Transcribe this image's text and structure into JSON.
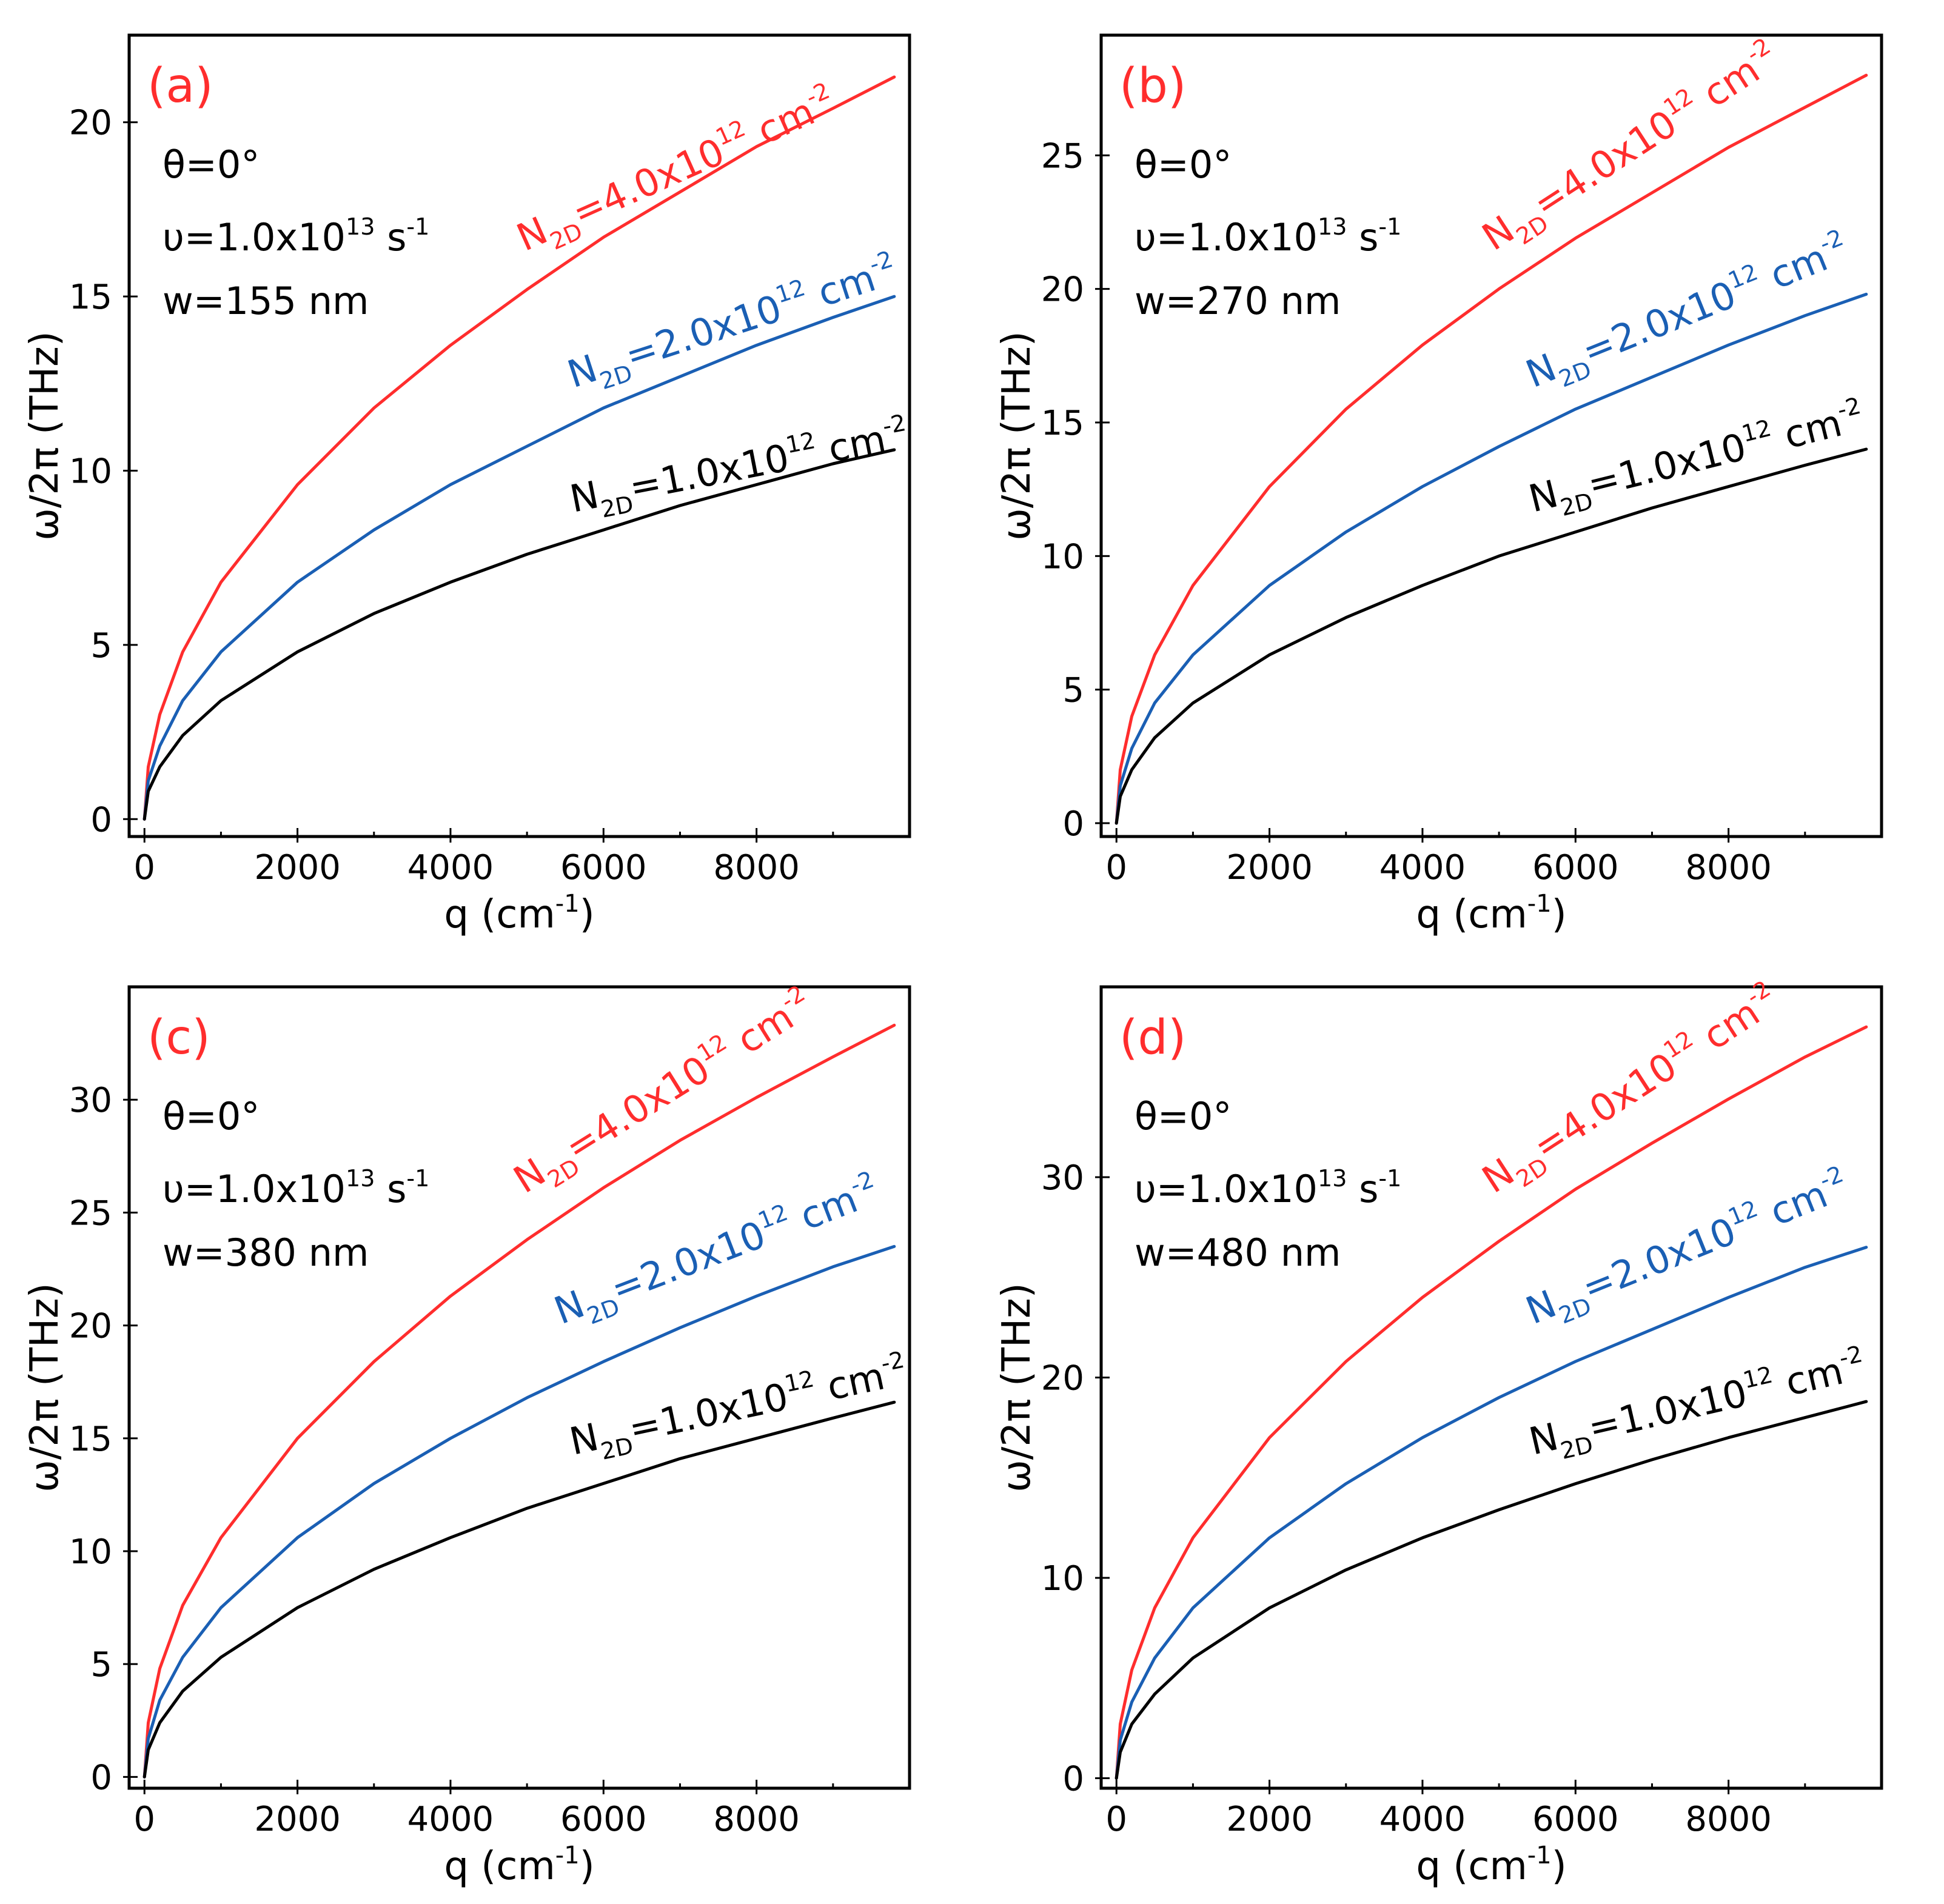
{
  "chart_data": [
    {
      "type": "line",
      "panel_label": "(a)",
      "xlabel": "q (cm-1)",
      "ylabel": "ω/2π (THz)",
      "xlim": [
        -200,
        10000
      ],
      "ylim": [
        -0.5,
        22.5
      ],
      "xticks": [
        0,
        2000,
        4000,
        6000,
        8000
      ],
      "yticks": [
        0,
        5,
        10,
        15,
        20
      ],
      "params": {
        "theta": "θ=0°",
        "nu": "υ=1.0x1013 s-1",
        "w": "w=155 nm"
      },
      "series": [
        {
          "name": "N2D=4.0x1012 cm-2",
          "color": "#ff2d2d",
          "q": [
            0,
            50,
            200,
            500,
            1000,
            2000,
            3000,
            4000,
            5000,
            6000,
            7000,
            8000,
            9000,
            9800
          ],
          "omega": [
            0,
            1.5,
            3.0,
            4.8,
            6.8,
            9.6,
            11.8,
            13.6,
            15.2,
            16.7,
            18.0,
            19.3,
            20.4,
            21.3
          ]
        },
        {
          "name": "N2D=2.0x1012 cm-2",
          "color": "#1a5fb4",
          "q": [
            0,
            50,
            200,
            500,
            1000,
            2000,
            3000,
            4000,
            5000,
            6000,
            7000,
            8000,
            9000,
            9800
          ],
          "omega": [
            0,
            1.1,
            2.1,
            3.4,
            4.8,
            6.8,
            8.3,
            9.6,
            10.7,
            11.8,
            12.7,
            13.6,
            14.4,
            15.0
          ]
        },
        {
          "name": "N2D=1.0x1012 cm-2",
          "color": "#000000",
          "q": [
            0,
            50,
            200,
            500,
            1000,
            2000,
            3000,
            4000,
            5000,
            6000,
            7000,
            8000,
            9000,
            9800
          ],
          "omega": [
            0,
            0.8,
            1.5,
            2.4,
            3.4,
            4.8,
            5.9,
            6.8,
            7.6,
            8.3,
            9.0,
            9.6,
            10.2,
            10.6
          ]
        }
      ],
      "labels": [
        {
          "base": "N",
          "sub": "2D",
          "rest": "=4.0x10",
          "sup": "12",
          "unit": " cm",
          "usup": "-2",
          "color": "#ff2d2d"
        },
        {
          "base": "N",
          "sub": "2D",
          "rest": "=2.0x10",
          "sup": "12",
          "unit": " cm",
          "usup": "-2",
          "color": "#1a5fb4"
        },
        {
          "base": "N",
          "sub": "2D",
          "rest": "=1.0x10",
          "sup": "12",
          "unit": " cm",
          "usup": "-2",
          "color": "#000000"
        }
      ]
    },
    {
      "type": "line",
      "panel_label": "(b)",
      "xlabel": "q (cm-1)",
      "ylabel": "ω/2π (THz)",
      "xlim": [
        -200,
        10000
      ],
      "ylim": [
        -0.5,
        29.5
      ],
      "xticks": [
        0,
        2000,
        4000,
        6000,
        8000
      ],
      "yticks": [
        0,
        5,
        10,
        15,
        20,
        25
      ],
      "params": {
        "theta": "θ=0°",
        "nu": "υ=1.0x1013 s-1",
        "w": "w=270 nm"
      },
      "series": [
        {
          "name": "N2D=4.0x1012 cm-2",
          "color": "#ff2d2d",
          "q": [
            0,
            50,
            200,
            500,
            1000,
            2000,
            3000,
            4000,
            5000,
            6000,
            7000,
            8000,
            9000,
            9800
          ],
          "omega": [
            0,
            2.0,
            4.0,
            6.3,
            8.9,
            12.6,
            15.5,
            17.9,
            20.0,
            21.9,
            23.6,
            25.3,
            26.8,
            28.0
          ]
        },
        {
          "name": "N2D=2.0x1012 cm-2",
          "color": "#1a5fb4",
          "q": [
            0,
            50,
            200,
            500,
            1000,
            2000,
            3000,
            4000,
            5000,
            6000,
            7000,
            8000,
            9000,
            9800
          ],
          "omega": [
            0,
            1.4,
            2.8,
            4.5,
            6.3,
            8.9,
            10.9,
            12.6,
            14.1,
            15.5,
            16.7,
            17.9,
            19.0,
            19.8
          ]
        },
        {
          "name": "N2D=1.0x1012 cm-2",
          "color": "#000000",
          "q": [
            0,
            50,
            200,
            500,
            1000,
            2000,
            3000,
            4000,
            5000,
            6000,
            7000,
            8000,
            9000,
            9800
          ],
          "omega": [
            0,
            1.0,
            2.0,
            3.2,
            4.5,
            6.3,
            7.7,
            8.9,
            10.0,
            10.9,
            11.8,
            12.6,
            13.4,
            14.0
          ]
        }
      ],
      "labels": [
        {
          "base": "N",
          "sub": "2D",
          "rest": "=4.0x10",
          "sup": "12",
          "unit": " cm",
          "usup": "-2",
          "color": "#ff2d2d"
        },
        {
          "base": "N",
          "sub": "2D",
          "rest": "=2.0x10",
          "sup": "12",
          "unit": " cm",
          "usup": "-2",
          "color": "#1a5fb4"
        },
        {
          "base": "N",
          "sub": "2D",
          "rest": "=1.0x10",
          "sup": "12",
          "unit": " cm",
          "usup": "-2",
          "color": "#000000"
        }
      ]
    },
    {
      "type": "line",
      "panel_label": "(c)",
      "xlabel": "q (cm-1)",
      "ylabel": "ω/2π (THz)",
      "xlim": [
        -200,
        10000
      ],
      "ylim": [
        -0.5,
        35.0
      ],
      "xticks": [
        0,
        2000,
        4000,
        6000,
        8000
      ],
      "yticks": [
        0,
        5,
        10,
        15,
        20,
        25,
        30
      ],
      "params": {
        "theta": "θ=0°",
        "nu": "υ=1.0x1013 s-1",
        "w": "w=380 nm"
      },
      "series": [
        {
          "name": "N2D=4.0x1012 cm-2",
          "color": "#ff2d2d",
          "q": [
            0,
            50,
            200,
            500,
            1000,
            2000,
            3000,
            4000,
            5000,
            6000,
            7000,
            8000,
            9000,
            9800
          ],
          "omega": [
            0,
            2.4,
            4.8,
            7.6,
            10.6,
            15.0,
            18.4,
            21.3,
            23.8,
            26.1,
            28.2,
            30.1,
            31.9,
            33.3
          ]
        },
        {
          "name": "N2D=2.0x1012 cm-2",
          "color": "#1a5fb4",
          "q": [
            0,
            50,
            200,
            500,
            1000,
            2000,
            3000,
            4000,
            5000,
            6000,
            7000,
            8000,
            9000,
            9800
          ],
          "omega": [
            0,
            1.7,
            3.4,
            5.3,
            7.5,
            10.6,
            13.0,
            15.0,
            16.8,
            18.4,
            19.9,
            21.3,
            22.6,
            23.5
          ]
        },
        {
          "name": "N2D=1.0x1012 cm-2",
          "color": "#000000",
          "q": [
            0,
            50,
            200,
            500,
            1000,
            2000,
            3000,
            4000,
            5000,
            6000,
            7000,
            8000,
            9000,
            9800
          ],
          "omega": [
            0,
            1.2,
            2.4,
            3.8,
            5.3,
            7.5,
            9.2,
            10.6,
            11.9,
            13.0,
            14.1,
            15.0,
            15.9,
            16.6
          ]
        }
      ],
      "labels": [
        {
          "base": "N",
          "sub": "2D",
          "rest": "=4.0x10",
          "sup": "12",
          "unit": " cm",
          "usup": "-2",
          "color": "#ff2d2d"
        },
        {
          "base": "N",
          "sub": "2D",
          "rest": "=2.0x10",
          "sup": "12",
          "unit": " cm",
          "usup": "-2",
          "color": "#1a5fb4"
        },
        {
          "base": "N",
          "sub": "2D",
          "rest": "=1.0x10",
          "sup": "12",
          "unit": " cm",
          "usup": "-2",
          "color": "#000000"
        }
      ]
    },
    {
      "type": "line",
      "panel_label": "(d)",
      "xlabel": "q (cm-1)",
      "ylabel": "ω/2π (THz)",
      "xlim": [
        -200,
        10000
      ],
      "ylim": [
        -0.5,
        39.5
      ],
      "xticks": [
        0,
        2000,
        4000,
        6000,
        8000
      ],
      "yticks": [
        0,
        10,
        20,
        30
      ],
      "params": {
        "theta": "θ=0°",
        "nu": "υ=1.0x1013 s-1",
        "w": "w=480 nm"
      },
      "series": [
        {
          "name": "N2D=4.0x1012 cm-2",
          "color": "#ff2d2d",
          "q": [
            0,
            50,
            200,
            500,
            1000,
            2000,
            3000,
            4000,
            5000,
            6000,
            7000,
            8000,
            9000,
            9800
          ],
          "omega": [
            0,
            2.7,
            5.4,
            8.5,
            12.0,
            17.0,
            20.8,
            24.0,
            26.8,
            29.4,
            31.7,
            33.9,
            36.0,
            37.5
          ]
        },
        {
          "name": "N2D=2.0x1012 cm-2",
          "color": "#1a5fb4",
          "q": [
            0,
            50,
            200,
            500,
            1000,
            2000,
            3000,
            4000,
            5000,
            6000,
            7000,
            8000,
            9000,
            9800
          ],
          "omega": [
            0,
            1.9,
            3.8,
            6.0,
            8.5,
            12.0,
            14.7,
            17.0,
            19.0,
            20.8,
            22.4,
            24.0,
            25.5,
            26.5
          ]
        },
        {
          "name": "N2D=1.0x1012 cm-2",
          "color": "#000000",
          "q": [
            0,
            50,
            200,
            500,
            1000,
            2000,
            3000,
            4000,
            5000,
            6000,
            7000,
            8000,
            9000,
            9800
          ],
          "omega": [
            0,
            1.3,
            2.7,
            4.2,
            6.0,
            8.5,
            10.4,
            12.0,
            13.4,
            14.7,
            15.9,
            17.0,
            18.0,
            18.8
          ]
        }
      ],
      "labels": [
        {
          "base": "N",
          "sub": "2D",
          "rest": "=4.0x10",
          "sup": "12",
          "unit": " cm",
          "usup": "-2",
          "color": "#ff2d2d"
        },
        {
          "base": "N",
          "sub": "2D",
          "rest": "=2.0x10",
          "sup": "12",
          "unit": " cm",
          "usup": "-2",
          "color": "#1a5fb4"
        },
        {
          "base": "N",
          "sub": "2D",
          "rest": "=1.0x10",
          "sup": "12",
          "unit": " cm",
          "usup": "-2",
          "color": "#000000"
        }
      ]
    }
  ]
}
